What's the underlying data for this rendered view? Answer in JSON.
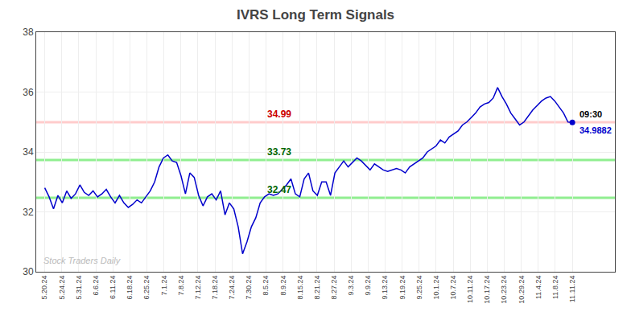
{
  "chart_data": {
    "type": "line",
    "title": "IVRS Long Term Signals",
    "color": "#0000cc",
    "grid": true,
    "xlim": [
      -0.5,
      33.5
    ],
    "xticks": [
      {
        "value": 0,
        "label": "5.20.24"
      },
      {
        "value": 1,
        "label": "5.24.24"
      },
      {
        "value": 2,
        "label": "5.31.24"
      },
      {
        "value": 3,
        "label": "6.6.24"
      },
      {
        "value": 4,
        "label": "6.11.24"
      },
      {
        "value": 5,
        "label": "6.18.24"
      },
      {
        "value": 6,
        "label": "6.25.24"
      },
      {
        "value": 7,
        "label": "7.1.24"
      },
      {
        "value": 8,
        "label": "7.8.24"
      },
      {
        "value": 9,
        "label": "7.12.24"
      },
      {
        "value": 10,
        "label": "7.18.24"
      },
      {
        "value": 11,
        "label": "7.24.24"
      },
      {
        "value": 12,
        "label": "7.30.24"
      },
      {
        "value": 13,
        "label": "8.5.24"
      },
      {
        "value": 14,
        "label": "8.9.24"
      },
      {
        "value": 15,
        "label": "8.15.24"
      },
      {
        "value": 16,
        "label": "8.21.24"
      },
      {
        "value": 17,
        "label": "8.27.24"
      },
      {
        "value": 18,
        "label": "9.3.24"
      },
      {
        "value": 19,
        "label": "9.9.24"
      },
      {
        "value": 20,
        "label": "9.13.24"
      },
      {
        "value": 21,
        "label": "9.19.24"
      },
      {
        "value": 22,
        "label": "9.25.24"
      },
      {
        "value": 23,
        "label": "10.1.24"
      },
      {
        "value": 24,
        "label": "10.7.24"
      },
      {
        "value": 25,
        "label": "10.11.24"
      },
      {
        "value": 26,
        "label": "10.17.24"
      },
      {
        "value": 27,
        "label": "10.23.24"
      },
      {
        "value": 28,
        "label": "10.29.24"
      },
      {
        "value": 29,
        "label": "11.4.24"
      },
      {
        "value": 30,
        "label": "11.8.24"
      },
      {
        "value": 31,
        "label": "11.11.24"
      }
    ],
    "ylim": [
      30,
      38
    ],
    "yticks": [
      30,
      32,
      34,
      36,
      38
    ],
    "values": [
      32.8,
      32.5,
      32.1,
      32.55,
      32.3,
      32.7,
      32.45,
      32.6,
      32.9,
      32.65,
      32.55,
      32.7,
      32.5,
      32.6,
      32.75,
      32.5,
      32.3,
      32.55,
      32.3,
      32.15,
      32.25,
      32.4,
      32.3,
      32.5,
      32.7,
      33.0,
      33.5,
      33.8,
      33.9,
      33.7,
      33.65,
      33.2,
      32.6,
      33.3,
      33.15,
      32.55,
      32.2,
      32.5,
      32.6,
      32.4,
      32.7,
      31.9,
      32.3,
      32.1,
      31.5,
      30.6,
      31.0,
      31.5,
      31.8,
      32.3,
      32.5,
      32.6,
      32.55,
      32.6,
      32.75,
      32.9,
      33.1,
      32.6,
      32.5,
      33.1,
      33.3,
      32.7,
      32.55,
      33.0,
      33.0,
      32.55,
      33.3,
      33.5,
      33.7,
      33.5,
      33.65,
      33.8,
      33.7,
      33.55,
      33.4,
      33.6,
      33.5,
      33.4,
      33.35,
      33.4,
      33.45,
      33.4,
      33.3,
      33.5,
      33.6,
      33.7,
      33.8,
      34.0,
      34.1,
      34.2,
      34.4,
      34.3,
      34.5,
      34.6,
      34.7,
      34.9,
      35.0,
      35.15,
      35.3,
      35.5,
      35.6,
      35.65,
      35.8,
      36.15,
      35.85,
      35.6,
      35.3,
      35.1,
      34.9,
      35.0,
      35.2,
      35.4,
      35.55,
      35.7,
      35.8,
      35.85,
      35.7,
      35.5,
      35.3,
      35.0,
      34.9882
    ],
    "reference_lines": [
      {
        "value": 34.99,
        "label": "34.99",
        "color": "#ffcccc",
        "label_color": "#cc0000",
        "label_at": "8.5.24"
      },
      {
        "value": 33.73,
        "label": "33.73",
        "color": "#90ee90",
        "label_color": "#006600",
        "label_at": "8.5.24"
      },
      {
        "value": 32.47,
        "label": "32.47",
        "color": "#90ee90",
        "label_color": "#006600",
        "label_at": "8.5.24"
      }
    ],
    "end_labels": {
      "texts": [
        "09:30",
        "34.9882"
      ],
      "colors": [
        "#000000",
        "#0000cc"
      ],
      "marker_color": "#0000cc"
    },
    "annotations": [
      {
        "text": "Stock Traders Daily",
        "color": "#bbbbbb"
      }
    ]
  }
}
